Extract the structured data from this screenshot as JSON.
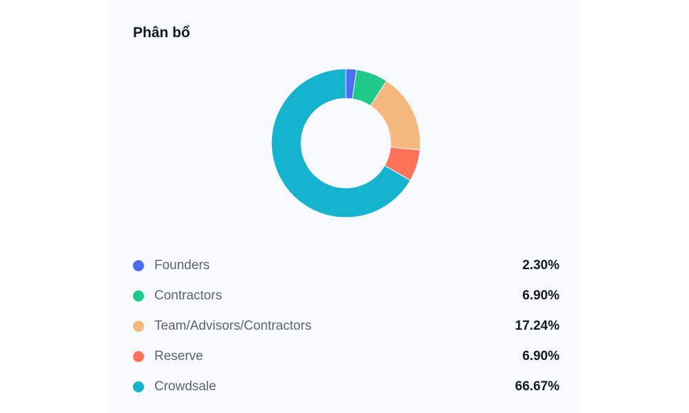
{
  "chart_data": {
    "type": "pie",
    "title": "Phân bổ",
    "donut": true,
    "legend_position": "bottom",
    "categories": [
      "Founders",
      "Contractors",
      "Team/Advisors/Contractors",
      "Reserve",
      "Crowdsale"
    ],
    "values": [
      2.3,
      6.9,
      17.24,
      6.9,
      66.67
    ],
    "value_labels": [
      "2.30%",
      "6.90%",
      "17.24%",
      "6.90%",
      "66.67%"
    ],
    "colors": [
      "#4a6cf7",
      "#1ec98a",
      "#f4b77e",
      "#ff735a",
      "#16b3cf"
    ]
  }
}
